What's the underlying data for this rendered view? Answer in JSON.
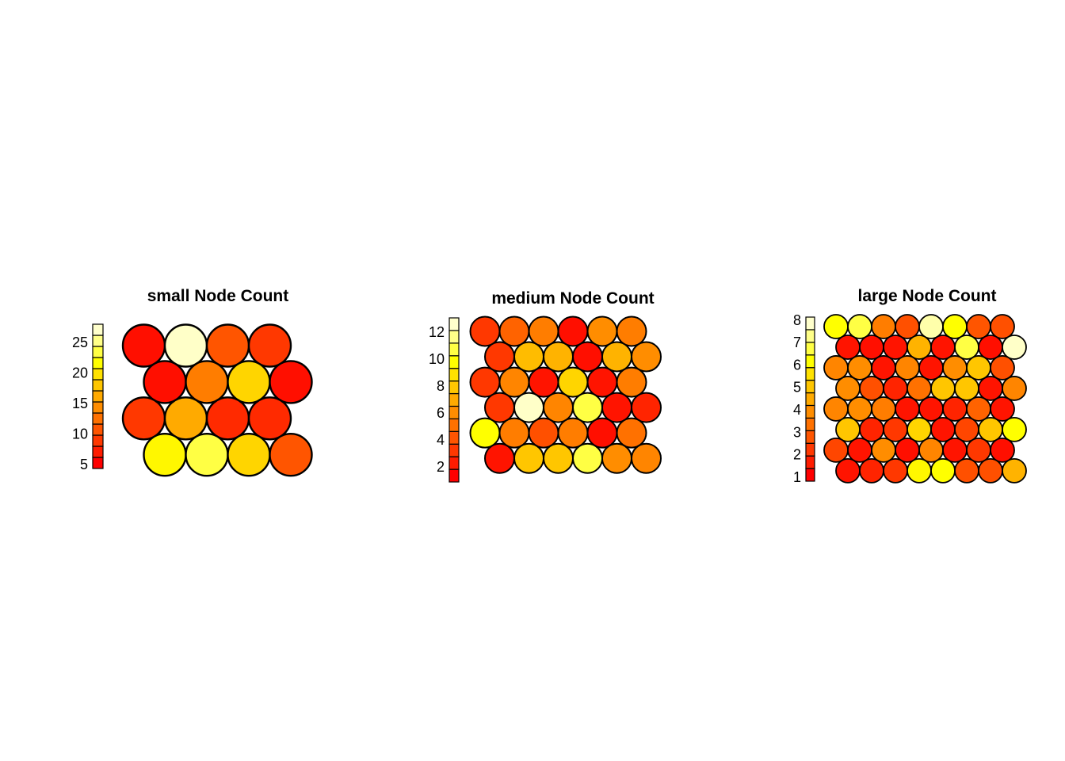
{
  "page": {
    "background": "#FFFFFF"
  },
  "chart_data": [
    {
      "type": "heatmap",
      "title": "small Node Count",
      "layout": "hexagonal-grid",
      "rows": 4,
      "cols": 4,
      "legend": {
        "position": "left",
        "ticks": [
          5,
          10,
          15,
          20,
          25
        ],
        "palette_bottom_to_top": [
          "#FF0000",
          "#FF1C00",
          "#FF3800",
          "#FF5500",
          "#FF7100",
          "#FF8D00",
          "#FFAA00",
          "#FFC600",
          "#FFE200",
          "#FFFF00",
          "#FFFF44",
          "#FFFF88",
          "#FFFFCC"
        ]
      },
      "node_colors": [
        [
          "#FF0F00",
          "#FFFFC8",
          "#FF5500",
          "#FF3800"
        ],
        [
          "#FF0F00",
          "#FF7D00",
          "#FFD500",
          "#FF0F00"
        ],
        [
          "#FF3800",
          "#FFAA00",
          "#FF2A00",
          "#FF2A00"
        ],
        [
          "#FFF700",
          "#FFFF44",
          "#FFD500",
          "#FF5500"
        ]
      ],
      "node_values_approx": [
        [
          5,
          28,
          10,
          8
        ],
        [
          5,
          13,
          20,
          5
        ],
        [
          8,
          16,
          7,
          7
        ],
        [
          23,
          24,
          20,
          10
        ]
      ]
    },
    {
      "type": "heatmap",
      "title": "medium Node Count",
      "layout": "hexagonal-grid",
      "rows": 6,
      "cols": 6,
      "legend": {
        "position": "left",
        "ticks": [
          2,
          4,
          6,
          8,
          10,
          12
        ],
        "palette_bottom_to_top": [
          "#FF0000",
          "#FF1C00",
          "#FF3800",
          "#FF5500",
          "#FF7100",
          "#FF8D00",
          "#FFAA00",
          "#FFC600",
          "#FFE200",
          "#FFFF00",
          "#FFFF44",
          "#FFFF88",
          "#FFFFCC"
        ]
      },
      "node_colors": [
        [
          "#FF3800",
          "#FF6300",
          "#FF7D00",
          "#FF0F00",
          "#FF8D00",
          "#FF7D00"
        ],
        [
          "#FF3800",
          "#FFBC00",
          "#FFB300",
          "#FF0F00",
          "#FFB300",
          "#FF8D00"
        ],
        [
          "#FF3800",
          "#FF8500",
          "#FF1400",
          "#FFD500",
          "#FF1400",
          "#FF7D00"
        ],
        [
          "#FF3800",
          "#FFFFC8",
          "#FF8500",
          "#FFFF44",
          "#FF1400",
          "#FF2400"
        ],
        [
          "#FFFF00",
          "#FF7D00",
          "#FF5000",
          "#FF7D00",
          "#FF0F00",
          "#FF7100"
        ],
        [
          "#FF1400",
          "#FFC600",
          "#FFC600",
          "#FFFF44",
          "#FF8D00",
          "#FF8500"
        ]
      ],
      "node_values_approx": [
        [
          3,
          4,
          5,
          1,
          6,
          5
        ],
        [
          3,
          8,
          8,
          1,
          8,
          6
        ],
        [
          3,
          5,
          1,
          9,
          1,
          5
        ],
        [
          3,
          13,
          6,
          11,
          1,
          2
        ],
        [
          10,
          5,
          4,
          5,
          1,
          5
        ],
        [
          1,
          8,
          8,
          11,
          6,
          6
        ]
      ]
    },
    {
      "type": "heatmap",
      "title": "large Node Count",
      "layout": "hexagonal-grid",
      "rows": 8,
      "cols": 8,
      "legend": {
        "position": "left",
        "ticks": [
          1,
          2,
          3,
          4,
          5,
          6,
          7,
          8
        ],
        "palette_bottom_to_top": [
          "#FF0000",
          "#FF1C00",
          "#FF3800",
          "#FF5500",
          "#FF7100",
          "#FF8D00",
          "#FFAA00",
          "#FFC600",
          "#FFE200",
          "#FFFF00",
          "#FFFF44",
          "#FFFF88",
          "#FFFFCC"
        ]
      },
      "node_colors": [
        [
          "#FFFF00",
          "#FFFF44",
          "#FF7D00",
          "#FF5000",
          "#FFFFAA",
          "#FFFF00",
          "#FF5500",
          "#FF5000"
        ],
        [
          "#FF1400",
          "#FF0F00",
          "#FF1400",
          "#FFB300",
          "#FF1400",
          "#FFFF44",
          "#FF0F00",
          "#FFFFC8"
        ],
        [
          "#FF8500",
          "#FF8D00",
          "#FF1400",
          "#FF8500",
          "#FF1400",
          "#FF8D00",
          "#FFC600",
          "#FF5000"
        ],
        [
          "#FF8D00",
          "#FF5000",
          "#FF2400",
          "#FF7100",
          "#FFC600",
          "#FFC600",
          "#FF1400",
          "#FF8500"
        ],
        [
          "#FF8500",
          "#FF8D00",
          "#FF7D00",
          "#FF1400",
          "#FF1400",
          "#FF2400",
          "#FF6300",
          "#FF1400"
        ],
        [
          "#FFC600",
          "#FF2400",
          "#FF3800",
          "#FFD500",
          "#FF1400",
          "#FF4600",
          "#FFC600",
          "#FFFF00"
        ],
        [
          "#FF4600",
          "#FF1400",
          "#FF8D00",
          "#FF0F00",
          "#FF8500",
          "#FF1400",
          "#FF3800",
          "#FF0F00"
        ],
        [
          "#FF1400",
          "#FF2400",
          "#FF3800",
          "#FFF700",
          "#FFFF00",
          "#FF5000",
          "#FF5000",
          "#FFB300"
        ]
      ],
      "node_values_approx": [
        [
          6,
          7,
          4,
          3,
          8,
          6,
          3,
          3
        ],
        [
          1,
          1,
          1,
          5,
          1,
          7,
          1,
          8
        ],
        [
          4,
          5,
          1,
          4,
          1,
          5,
          6,
          3
        ],
        [
          5,
          3,
          2,
          4,
          6,
          6,
          1,
          4
        ],
        [
          4,
          5,
          4,
          1,
          1,
          2,
          3,
          1
        ],
        [
          6,
          2,
          2,
          6,
          1,
          2,
          6,
          6
        ],
        [
          2,
          1,
          5,
          1,
          4,
          1,
          2,
          1
        ],
        [
          1,
          2,
          2,
          6,
          6,
          3,
          3,
          5
        ]
      ]
    }
  ]
}
